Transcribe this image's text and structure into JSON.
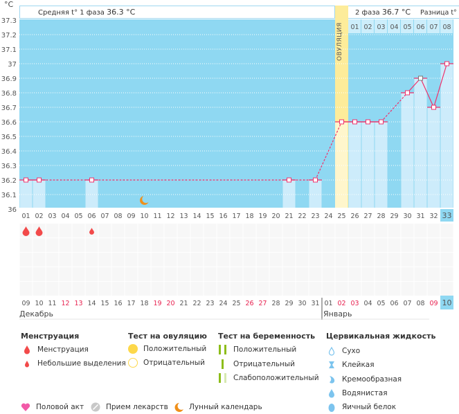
{
  "header": {
    "unit": "°C",
    "phase1_label": "Средняя t° 1 фаза",
    "phase1_value": "36.3 °C",
    "phase2_label": "2 фаза",
    "phase2_value": "36.7 °C",
    "diff_label": "Разница t° 0.",
    "ovulation_label": "ОВУЛЯЦИЯ"
  },
  "chart_data": {
    "type": "line",
    "ylim": [
      36,
      37.3
    ],
    "yticks": [
      "37.3",
      "37.2",
      "37.1",
      "37",
      "36.9",
      "36.8",
      "36.7",
      "36.6",
      "36.5",
      "36.4",
      "36.3",
      "36.2",
      "36.1",
      "36"
    ],
    "cycle_days": [
      "01",
      "02",
      "03",
      "04",
      "05",
      "06",
      "07",
      "08",
      "09",
      "10",
      "11",
      "12",
      "13",
      "14",
      "15",
      "16",
      "17",
      "18",
      "19",
      "20",
      "21",
      "22",
      "23",
      "24",
      "25",
      "26",
      "27",
      "28",
      "29",
      "30",
      "31",
      "32",
      "33"
    ],
    "points": [
      {
        "day": 1,
        "t": 36.2
      },
      {
        "day": 2,
        "t": 36.2
      },
      {
        "day": 6,
        "t": 36.2
      },
      {
        "day": 21,
        "t": 36.2
      },
      {
        "day": 23,
        "t": 36.2
      },
      {
        "day": 25,
        "t": 36.6
      },
      {
        "day": 26,
        "t": 36.6
      },
      {
        "day": 27,
        "t": 36.6
      },
      {
        "day": 28,
        "t": 36.6
      },
      {
        "day": 30,
        "t": 36.8
      },
      {
        "day": 31,
        "t": 36.9
      },
      {
        "day": 32,
        "t": 36.7
      },
      {
        "day": 33,
        "t": 37.0
      }
    ],
    "ovulation_day": 25,
    "current_day": 33,
    "phase2_days": [
      "01",
      "02",
      "03",
      "04",
      "05",
      "06",
      "07",
      "08"
    ],
    "moon_day": 10,
    "colors": {
      "bg": "#8fd8f2",
      "bar": "#cdecfb",
      "ovulation": "#fdec9a",
      "line": "#f0306a"
    }
  },
  "menstruation_marks": [
    {
      "day": 1,
      "type": "heavy"
    },
    {
      "day": 2,
      "type": "heavy"
    },
    {
      "day": 6,
      "type": "light"
    }
  ],
  "calendar": {
    "dates": [
      {
        "d": "09"
      },
      {
        "d": "10"
      },
      {
        "d": "11"
      },
      {
        "d": "12",
        "w": true
      },
      {
        "d": "13",
        "w": true
      },
      {
        "d": "14"
      },
      {
        "d": "15"
      },
      {
        "d": "16"
      },
      {
        "d": "17"
      },
      {
        "d": "18"
      },
      {
        "d": "19",
        "w": true
      },
      {
        "d": "20",
        "w": true
      },
      {
        "d": "21"
      },
      {
        "d": "22"
      },
      {
        "d": "23"
      },
      {
        "d": "24"
      },
      {
        "d": "25"
      },
      {
        "d": "26",
        "w": true
      },
      {
        "d": "27",
        "w": true
      },
      {
        "d": "28"
      },
      {
        "d": "29"
      },
      {
        "d": "30"
      },
      {
        "d": "31"
      },
      {
        "d": "01"
      },
      {
        "d": "02",
        "w": true
      },
      {
        "d": "03",
        "w": true
      },
      {
        "d": "04"
      },
      {
        "d": "05"
      },
      {
        "d": "06"
      },
      {
        "d": "07"
      },
      {
        "d": "08"
      },
      {
        "d": "09",
        "w": true
      },
      {
        "d": "10"
      }
    ],
    "month1": "Декабрь",
    "month2": "Январь"
  },
  "legend": {
    "menstruation": {
      "title": "Менструация",
      "items": [
        "Менструация",
        "Небольшие выделения"
      ]
    },
    "ovulation_test": {
      "title": "Тест на овуляцию",
      "items": [
        "Положительный",
        "Отрицательный"
      ]
    },
    "pregnancy_test": {
      "title": "Тест на беременность",
      "items": [
        "Положительный",
        "Отрицательный",
        "Слабоположительный"
      ]
    },
    "cervical": {
      "title": "Цервикальная жидкость",
      "items": [
        "Сухо",
        "Клейкая",
        "Кремообразная",
        "Водянистая",
        "Яичный белок"
      ]
    },
    "other": [
      "Половой акт",
      "Прием лекарств",
      "Лунный календарь"
    ]
  }
}
